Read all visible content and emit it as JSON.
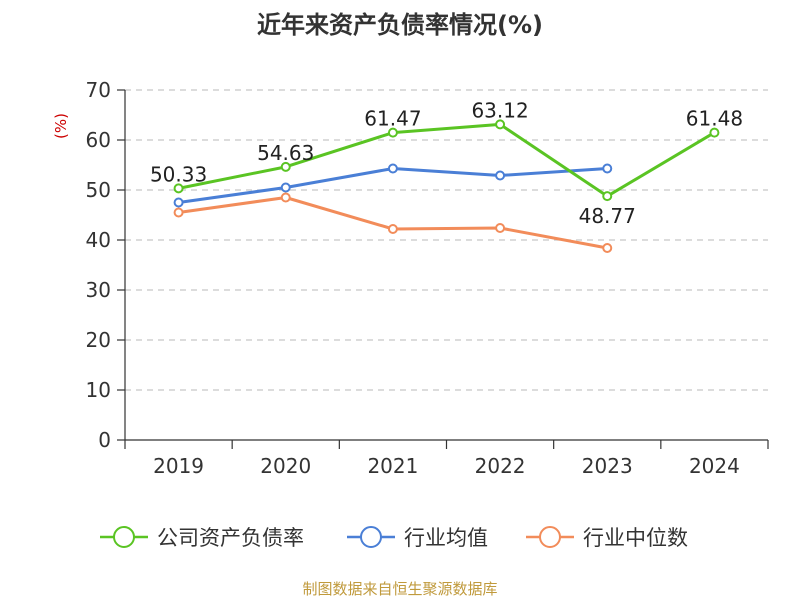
{
  "chart_data": {
    "type": "line",
    "title": "近年来资产负债率情况(%)",
    "ylabel": "(%)",
    "xlabel": "",
    "categories": [
      "2019",
      "2020",
      "2021",
      "2022",
      "2023",
      "2024"
    ],
    "ylim": [
      0,
      70
    ],
    "yticks": [
      "0",
      "10",
      "20",
      "30",
      "40",
      "50",
      "60",
      "70"
    ],
    "grid": true,
    "legend_position": "bottom",
    "series": [
      {
        "name": "公司资产负债率",
        "color": "#5ac423",
        "values": [
          50.33,
          54.63,
          61.47,
          63.12,
          48.77,
          61.48
        ],
        "labels": [
          "50.33",
          "54.63",
          "61.47",
          "63.12",
          "48.77",
          "61.48"
        ]
      },
      {
        "name": "行业均值",
        "color": "#4a7fd6",
        "values": [
          47.5,
          50.5,
          54.3,
          52.9,
          54.3,
          null
        ]
      },
      {
        "name": "行业中位数",
        "color": "#f28c5a",
        "values": [
          45.5,
          48.5,
          42.2,
          42.4,
          38.4,
          null
        ]
      }
    ],
    "source": "制图数据来自恒生聚源数据库"
  }
}
